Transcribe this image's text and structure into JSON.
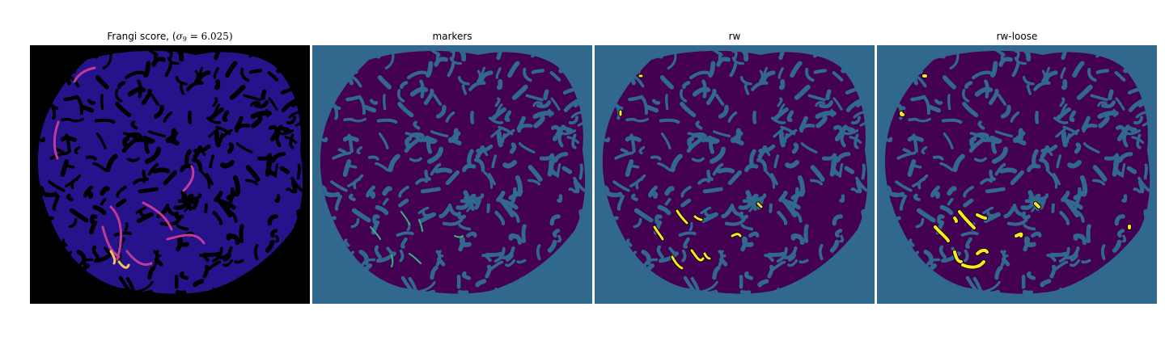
{
  "panels": [
    {
      "id": "frangi",
      "title_prefix": "Frangi score, (",
      "title_sigma": "σ",
      "title_sub": "9",
      "title_rest": " = 6.025)",
      "colors": {
        "background": "#000000",
        "blob": "#26128a",
        "vessel": "#000000",
        "bright": "#c03a9a",
        "hot": "#f5c060"
      }
    },
    {
      "id": "markers",
      "title": "markers",
      "colors": {
        "background": "#31688e",
        "blob": "#440154",
        "vessel": "#31688e",
        "marker": "#35b779"
      }
    },
    {
      "id": "rw",
      "title": "rw",
      "colors": {
        "background": "#31688e",
        "blob": "#440154",
        "vessel": "#31688e",
        "label": "#fde725"
      }
    },
    {
      "id": "rw-loose",
      "title": "rw-loose",
      "colors": {
        "background": "#31688e",
        "blob": "#440154",
        "vessel": "#31688e",
        "label": "#fde725"
      }
    }
  ]
}
